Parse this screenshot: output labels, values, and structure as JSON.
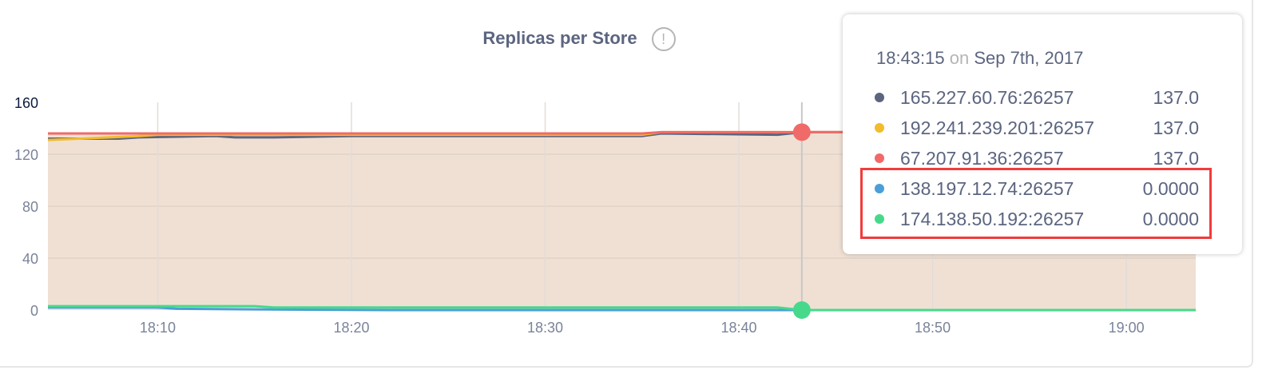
{
  "chart_data": {
    "type": "line",
    "title": "Replicas per Store",
    "info_icon": "exclamation-circle-icon",
    "xlabel": "",
    "ylabel": "",
    "xlim": [
      "18:04:20",
      "19:03:35"
    ],
    "ylim": [
      0,
      160
    ],
    "x_ticks": [
      "18:10",
      "18:20",
      "18:30",
      "18:40",
      "18:50",
      "19:00"
    ],
    "y_ticks": [
      0,
      40,
      80,
      120,
      160
    ],
    "grid": true,
    "area_fill": "#f0e0d4",
    "hover_time": "18:43:15",
    "series": [
      {
        "name": "165.227.60.76:26257",
        "color": "#5c6580",
        "points": [
          [
            "18:04:20",
            132
          ],
          [
            "18:08:00",
            132
          ],
          [
            "18:09:00",
            133
          ],
          [
            "18:13:00",
            134
          ],
          [
            "18:14:00",
            133
          ],
          [
            "18:16:00",
            133
          ],
          [
            "18:20:00",
            134
          ],
          [
            "18:35:00",
            134
          ],
          [
            "18:36:00",
            136
          ],
          [
            "18:42:00",
            135
          ],
          [
            "18:43:15",
            137
          ],
          [
            "19:03:35",
            137
          ]
        ]
      },
      {
        "name": "192.241.239.201:26257",
        "color": "#f2bc2b",
        "points": [
          [
            "18:04:20",
            131
          ],
          [
            "18:06:00",
            132
          ],
          [
            "18:09:00",
            134
          ],
          [
            "18:10:00",
            135
          ],
          [
            "18:35:00",
            135
          ],
          [
            "18:36:00",
            137
          ],
          [
            "18:43:15",
            137
          ],
          [
            "19:03:35",
            137
          ]
        ]
      },
      {
        "name": "67.207.91.36:26257",
        "color": "#f06a6a",
        "points": [
          [
            "18:04:20",
            136
          ],
          [
            "18:35:00",
            136
          ],
          [
            "18:36:00",
            137
          ],
          [
            "18:43:15",
            137
          ],
          [
            "19:03:35",
            137
          ]
        ]
      },
      {
        "name": "138.197.12.74:26257",
        "color": "#4a9fd8",
        "points": [
          [
            "18:04:20",
            2
          ],
          [
            "18:10:00",
            2
          ],
          [
            "18:11:00",
            1
          ],
          [
            "18:15:00",
            0.5
          ],
          [
            "18:22:00",
            0
          ],
          [
            "18:43:15",
            0
          ],
          [
            "19:03:35",
            0
          ]
        ]
      },
      {
        "name": "174.138.50.192:26257",
        "color": "#47d98b",
        "points": [
          [
            "18:04:20",
            3
          ],
          [
            "18:15:00",
            3
          ],
          [
            "18:16:00",
            2
          ],
          [
            "18:42:00",
            2
          ],
          [
            "18:43:15",
            0
          ],
          [
            "19:03:35",
            0
          ]
        ]
      }
    ]
  },
  "tooltip": {
    "time": "18:43:15",
    "on": "on",
    "date": "Sep 7th, 2017",
    "rows": [
      {
        "name": "165.227.60.76:26257",
        "value": "137.0",
        "color": "#5c6580"
      },
      {
        "name": "192.241.239.201:26257",
        "value": "137.0",
        "color": "#f2bc2b"
      },
      {
        "name": "67.207.91.36:26257",
        "value": "137.0",
        "color": "#f06a6a"
      },
      {
        "name": "138.197.12.74:26257",
        "value": "0.0000",
        "color": "#4a9fd8"
      },
      {
        "name": "174.138.50.192:26257",
        "value": "0.0000",
        "color": "#47d98b"
      }
    ]
  },
  "highlight_color": "#f23b3b"
}
